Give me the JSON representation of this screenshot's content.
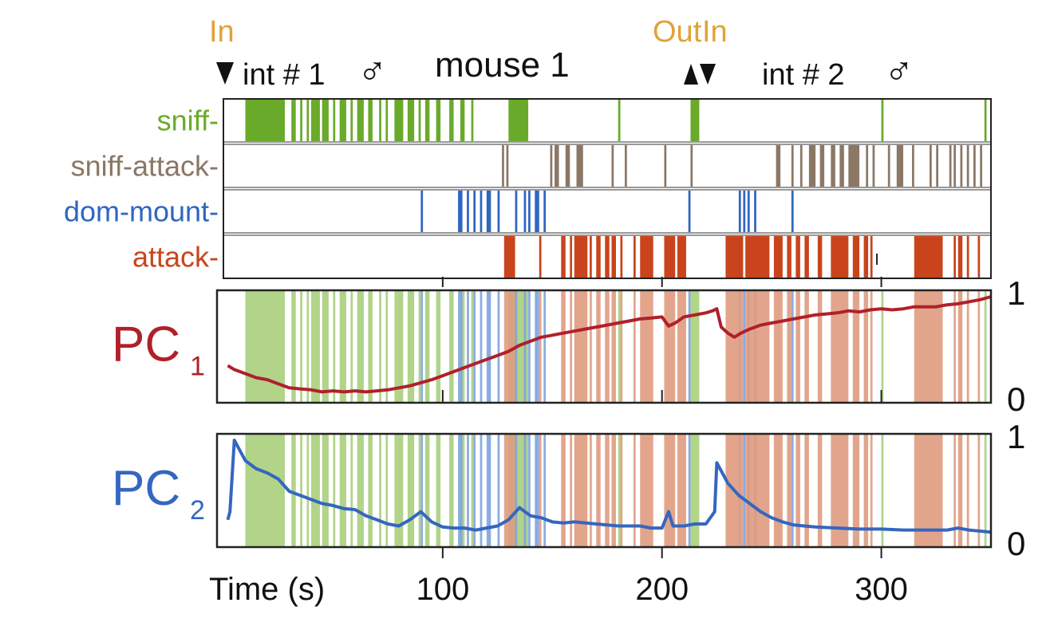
{
  "chart_data": {
    "type": "line",
    "colors": {
      "sniff": "#6aaa2a",
      "sniff-attack": "#8b7765",
      "dom-mount": "#2f66c0",
      "attack": "#c9441c",
      "pc1": "#b0202a",
      "pc2": "#3566c0",
      "event": "#e0a23a",
      "shade_sniff": "#a9cf7c",
      "shade_dom": "#7ea3e0",
      "shade_attack": "#df9b80"
    },
    "title": "mouse 1",
    "events": [
      {
        "label": "In",
        "t": 2,
        "dir": "down"
      },
      {
        "label": "Out",
        "t": 212,
        "dir": "up"
      },
      {
        "label": "In",
        "t": 217,
        "dir": "down"
      }
    ],
    "intruders": [
      {
        "label": "int # 1",
        "symbol": "♂"
      },
      {
        "label": "int # 2",
        "symbol": "♂"
      }
    ],
    "xlabel": "Time (s)",
    "xlim": [
      0,
      350
    ],
    "xticks": [
      100,
      200,
      300
    ],
    "ethogram": [
      {
        "name": "sniff",
        "color": "#6aaa2a",
        "bouts": [
          [
            10,
            28
          ],
          [
            31,
            33
          ],
          [
            35,
            36
          ],
          [
            38,
            39
          ],
          [
            40,
            44
          ],
          [
            45,
            48
          ],
          [
            50,
            51
          ],
          [
            53,
            56
          ],
          [
            58,
            59
          ],
          [
            61,
            64
          ],
          [
            66,
            68
          ],
          [
            71,
            72
          ],
          [
            74,
            75
          ],
          [
            78,
            82
          ],
          [
            84,
            87
          ],
          [
            89,
            90
          ],
          [
            92,
            94
          ],
          [
            97,
            99
          ],
          [
            103,
            105
          ],
          [
            108,
            110
          ],
          [
            113,
            114
          ],
          [
            130,
            139
          ],
          [
            180,
            181
          ],
          [
            213,
            217
          ],
          [
            300,
            301
          ],
          [
            347,
            348
          ]
        ]
      },
      {
        "name": "sniff-attack",
        "color": "#8b7765",
        "bouts": [
          [
            127,
            128
          ],
          [
            129,
            130
          ],
          [
            149,
            150
          ],
          [
            151,
            153
          ],
          [
            156,
            158
          ],
          [
            161,
            164
          ],
          [
            177,
            178
          ],
          [
            183,
            184
          ],
          [
            201,
            202
          ],
          [
            213,
            214
          ],
          [
            252,
            254
          ],
          [
            259,
            260
          ],
          [
            263,
            264
          ],
          [
            267,
            270
          ],
          [
            272,
            274
          ],
          [
            277,
            279
          ],
          [
            281,
            283
          ],
          [
            285,
            290
          ],
          [
            293,
            294
          ],
          [
            296,
            297
          ],
          [
            303,
            304
          ],
          [
            307,
            310
          ],
          [
            314,
            315
          ],
          [
            322,
            323
          ],
          [
            325,
            326
          ],
          [
            331,
            332
          ],
          [
            333,
            334
          ],
          [
            336,
            337
          ],
          [
            339,
            340
          ],
          [
            342,
            343
          ],
          [
            345,
            346
          ]
        ]
      },
      {
        "name": "dom-mount",
        "color": "#2f66c0",
        "bouts": [
          [
            90,
            91
          ],
          [
            107,
            109
          ],
          [
            111,
            112
          ],
          [
            114,
            115
          ],
          [
            117,
            118
          ],
          [
            120,
            122
          ],
          [
            125,
            126
          ],
          [
            133,
            134
          ],
          [
            137,
            138
          ],
          [
            139,
            140
          ],
          [
            142,
            144
          ],
          [
            146,
            147
          ],
          [
            212,
            213
          ],
          [
            235,
            236
          ],
          [
            237,
            238
          ],
          [
            239,
            240
          ],
          [
            242,
            243
          ],
          [
            259,
            260
          ]
        ]
      },
      {
        "name": "attack",
        "color": "#c9441c",
        "bouts": [
          [
            128,
            133
          ],
          [
            144,
            145
          ],
          [
            154,
            156
          ],
          [
            158,
            159
          ],
          [
            160,
            166
          ],
          [
            167,
            168
          ],
          [
            170,
            172
          ],
          [
            174,
            176
          ],
          [
            177,
            179
          ],
          [
            181,
            182
          ],
          [
            187,
            188
          ],
          [
            190,
            196
          ],
          [
            201,
            206
          ],
          [
            207,
            211
          ],
          [
            229,
            237
          ],
          [
            238,
            249
          ],
          [
            251,
            255
          ],
          [
            257,
            259
          ],
          [
            261,
            263
          ],
          [
            265,
            267
          ],
          [
            271,
            273
          ],
          [
            277,
            285
          ],
          [
            287,
            290
          ],
          [
            292,
            294
          ],
          [
            295,
            296
          ],
          [
            315,
            328
          ],
          [
            333,
            334
          ],
          [
            335,
            337
          ],
          [
            339,
            340
          ],
          [
            344,
            345
          ]
        ]
      }
    ],
    "panels": [
      {
        "name": "PC",
        "subscript": "1",
        "color": "#b0202a",
        "ylim": [
          0,
          1
        ],
        "yticks": [
          "1",
          "0"
        ]
      },
      {
        "name": "PC",
        "subscript": "2",
        "color": "#3566c0",
        "ylim": [
          0,
          1
        ],
        "yticks": [
          "1",
          "0"
        ]
      }
    ],
    "series": [
      {
        "name": "PC1",
        "x": [
          2,
          5,
          10,
          15,
          20,
          25,
          30,
          35,
          40,
          45,
          50,
          55,
          60,
          65,
          70,
          75,
          80,
          85,
          90,
          95,
          100,
          105,
          110,
          115,
          120,
          125,
          130,
          135,
          140,
          145,
          150,
          155,
          160,
          165,
          170,
          175,
          180,
          185,
          190,
          195,
          200,
          203,
          206,
          210,
          215,
          220,
          223,
          225,
          227,
          230,
          233,
          236,
          240,
          245,
          250,
          255,
          260,
          265,
          270,
          275,
          280,
          285,
          290,
          295,
          300,
          305,
          310,
          315,
          320,
          325,
          330,
          335,
          340,
          345,
          350
        ],
        "y": [
          0.32,
          0.28,
          0.24,
          0.2,
          0.18,
          0.14,
          0.1,
          0.09,
          0.08,
          0.06,
          0.07,
          0.06,
          0.07,
          0.06,
          0.07,
          0.08,
          0.1,
          0.12,
          0.15,
          0.18,
          0.22,
          0.26,
          0.3,
          0.34,
          0.38,
          0.42,
          0.46,
          0.52,
          0.56,
          0.6,
          0.62,
          0.64,
          0.66,
          0.68,
          0.7,
          0.72,
          0.74,
          0.76,
          0.78,
          0.79,
          0.8,
          0.71,
          0.74,
          0.8,
          0.82,
          0.84,
          0.86,
          0.88,
          0.7,
          0.64,
          0.6,
          0.64,
          0.68,
          0.72,
          0.74,
          0.76,
          0.78,
          0.8,
          0.82,
          0.83,
          0.84,
          0.86,
          0.85,
          0.87,
          0.88,
          0.87,
          0.88,
          0.9,
          0.9,
          0.9,
          0.92,
          0.93,
          0.95,
          0.97,
          1.0
        ]
      },
      {
        "name": "PC2",
        "x": [
          2,
          3,
          5,
          7,
          10,
          15,
          20,
          25,
          30,
          35,
          40,
          45,
          50,
          55,
          60,
          65,
          70,
          75,
          80,
          85,
          90,
          95,
          100,
          105,
          110,
          115,
          120,
          125,
          130,
          135,
          140,
          145,
          150,
          155,
          160,
          170,
          180,
          190,
          195,
          200,
          203,
          205,
          210,
          215,
          220,
          222,
          224,
          225,
          227,
          230,
          235,
          240,
          245,
          250,
          255,
          260,
          270,
          280,
          290,
          300,
          310,
          320,
          330,
          335,
          340,
          350
        ],
        "y": [
          0.22,
          0.3,
          1.0,
          0.92,
          0.8,
          0.72,
          0.68,
          0.62,
          0.5,
          0.46,
          0.42,
          0.38,
          0.36,
          0.33,
          0.32,
          0.26,
          0.22,
          0.18,
          0.16,
          0.22,
          0.3,
          0.2,
          0.15,
          0.14,
          0.14,
          0.12,
          0.14,
          0.16,
          0.22,
          0.34,
          0.26,
          0.24,
          0.2,
          0.19,
          0.2,
          0.18,
          0.16,
          0.16,
          0.14,
          0.14,
          0.3,
          0.16,
          0.16,
          0.18,
          0.18,
          0.24,
          0.3,
          0.78,
          0.7,
          0.58,
          0.46,
          0.38,
          0.3,
          0.24,
          0.2,
          0.17,
          0.15,
          0.14,
          0.13,
          0.13,
          0.12,
          0.12,
          0.12,
          0.14,
          0.12,
          0.1
        ]
      }
    ]
  }
}
